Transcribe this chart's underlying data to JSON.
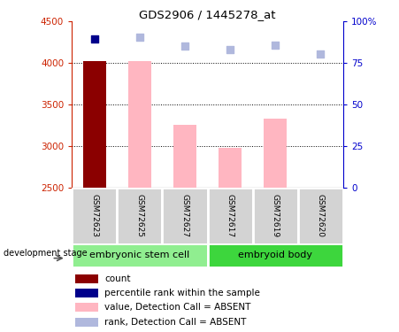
{
  "title": "GDS2906 / 1445278_at",
  "samples": [
    "GSM72623",
    "GSM72625",
    "GSM72627",
    "GSM72617",
    "GSM72619",
    "GSM72620"
  ],
  "ylim_left": [
    2500,
    4500
  ],
  "ylim_right": [
    0,
    100
  ],
  "yticks_left": [
    2500,
    3000,
    3500,
    4000,
    4500
  ],
  "yticks_right": [
    0,
    25,
    50,
    75,
    100
  ],
  "yright_labels": [
    "0",
    "25",
    "50",
    "75",
    "100%"
  ],
  "bar_values": [
    4020,
    4020,
    3260,
    2980,
    3330,
    2500
  ],
  "bar_colors": [
    "#8B0000",
    "#FFB6C1",
    "#FFB6C1",
    "#FFB6C1",
    "#FFB6C1",
    "#FFB6C1"
  ],
  "scatter_values": [
    4290,
    4310,
    4210,
    4160,
    4220,
    4110
  ],
  "scatter_colors": [
    "#00008B",
    "#B0B8DD",
    "#B0B8DD",
    "#B0B8DD",
    "#B0B8DD",
    "#B0B8DD"
  ],
  "grid_lines": [
    3000,
    3500,
    4000
  ],
  "group_info": [
    {
      "label": "embryonic stem cell",
      "start": 0,
      "end": 2,
      "color": "#90EE90"
    },
    {
      "label": "embryoid body",
      "start": 3,
      "end": 5,
      "color": "#3DD63D"
    }
  ],
  "legend_items": [
    {
      "label": "count",
      "color": "#8B0000"
    },
    {
      "label": "percentile rank within the sample",
      "color": "#00008B"
    },
    {
      "label": "value, Detection Call = ABSENT",
      "color": "#FFB6C1"
    },
    {
      "label": "rank, Detection Call = ABSENT",
      "color": "#B0B8DD"
    }
  ],
  "left_axis_color": "#CC2200",
  "right_axis_color": "#0000CC",
  "sample_box_color": "#D3D3D3",
  "stage_label": "development stage"
}
